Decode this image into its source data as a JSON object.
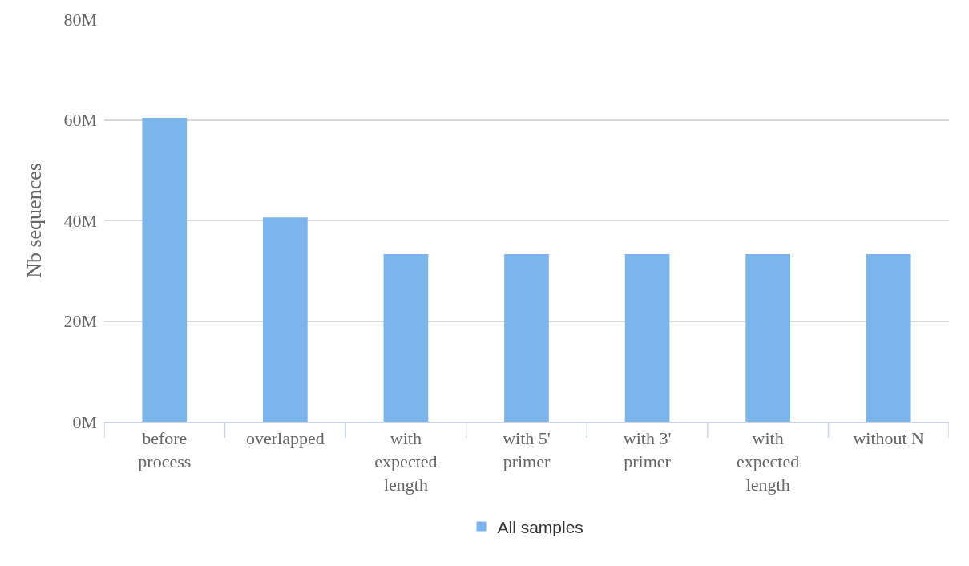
{
  "chart_data": {
    "type": "bar",
    "ylabel": "Nb sequences",
    "categories": [
      "before process",
      "overlapped",
      "with expected length",
      "with 5' primer",
      "with 3' primer",
      "with expected length",
      "without N"
    ],
    "series": [
      {
        "name": "All samples",
        "color": "#7cb5ec",
        "values": [
          60.4,
          40.6,
          33.3,
          33.3,
          33.3,
          33.3,
          33.3
        ]
      }
    ],
    "ylim": [
      0,
      80
    ],
    "yticks": [
      {
        "value": 0,
        "label": "0M"
      },
      {
        "value": 20,
        "label": "20M"
      },
      {
        "value": 40,
        "label": "40M"
      },
      {
        "value": 60,
        "label": "60M"
      },
      {
        "value": 80,
        "label": "80M"
      }
    ],
    "grid": "y",
    "legend": "bottom"
  }
}
